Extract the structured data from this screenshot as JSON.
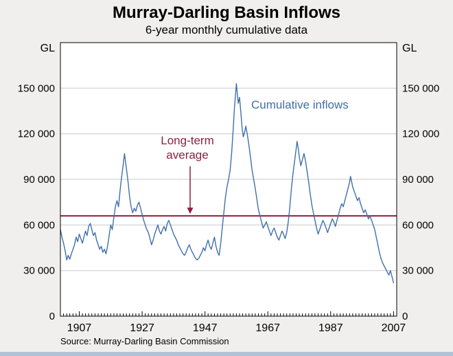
{
  "chart_data": {
    "type": "line",
    "title": "Murray-Darling Basin Inflows",
    "subtitle": "6-year monthly cumulative data",
    "unit": "GL",
    "source": "Source: Murray-Darling Basin Commission",
    "ylim": [
      0,
      180000
    ],
    "yticks": [
      0,
      30000,
      60000,
      90000,
      120000,
      150000
    ],
    "ytick_labels": [
      "0",
      "30 000",
      "60 000",
      "90 000",
      "120 000",
      "150 000"
    ],
    "xlim": [
      1901,
      2008
    ],
    "xticks": [
      1907,
      1927,
      1947,
      1967,
      1987,
      2007
    ],
    "minor_xtick_step": 1,
    "grid": true,
    "legend_position": "none",
    "colors": {
      "series": "#3f6fab",
      "average": "#8e1f3d",
      "grid": "#c9c9c9",
      "axis": "#000000",
      "plot_background": "#ffffff",
      "page_background": "#f0efee",
      "footer": "#b2c2d6"
    },
    "long_term_average": {
      "value": 66000,
      "label_line1": "Long-term",
      "label_line2": "average"
    },
    "series": [
      {
        "name": "Cumulative inflows",
        "color": "#3f6fab",
        "points": [
          [
            1901,
            57000
          ],
          [
            1901.5,
            52000
          ],
          [
            1902,
            48000
          ],
          [
            1902.5,
            43000
          ],
          [
            1903,
            37000
          ],
          [
            1903.5,
            40000
          ],
          [
            1904,
            37500
          ],
          [
            1904.5,
            41000
          ],
          [
            1905,
            44000
          ],
          [
            1905.5,
            47000
          ],
          [
            1906,
            52000
          ],
          [
            1906.5,
            49000
          ],
          [
            1907,
            54000
          ],
          [
            1907.5,
            51000
          ],
          [
            1908,
            48000
          ],
          [
            1908.5,
            52000
          ],
          [
            1909,
            56000
          ],
          [
            1909.5,
            53000
          ],
          [
            1910,
            59000
          ],
          [
            1910.5,
            61000
          ],
          [
            1911,
            57000
          ],
          [
            1911.5,
            53000
          ],
          [
            1912,
            55000
          ],
          [
            1912.5,
            50000
          ],
          [
            1913,
            47000
          ],
          [
            1913.5,
            44000
          ],
          [
            1914,
            46000
          ],
          [
            1914.5,
            42000
          ],
          [
            1915,
            44000
          ],
          [
            1915.5,
            41000
          ],
          [
            1916,
            46000
          ],
          [
            1916.5,
            53000
          ],
          [
            1917,
            60000
          ],
          [
            1917.5,
            57000
          ],
          [
            1918,
            65000
          ],
          [
            1918.5,
            72000
          ],
          [
            1919,
            76000
          ],
          [
            1919.5,
            72000
          ],
          [
            1920,
            83000
          ],
          [
            1920.5,
            92000
          ],
          [
            1921,
            100000
          ],
          [
            1921.4,
            107000
          ],
          [
            1921.8,
            100000
          ],
          [
            1922.2,
            94000
          ],
          [
            1922.6,
            87000
          ],
          [
            1923,
            79000
          ],
          [
            1923.5,
            72000
          ],
          [
            1924,
            68000
          ],
          [
            1924.5,
            71000
          ],
          [
            1925,
            69000
          ],
          [
            1925.5,
            73000
          ],
          [
            1926,
            75000
          ],
          [
            1926.5,
            71000
          ],
          [
            1927,
            67000
          ],
          [
            1927.5,
            63000
          ],
          [
            1928,
            60000
          ],
          [
            1928.5,
            57000
          ],
          [
            1929,
            55000
          ],
          [
            1929.5,
            51000
          ],
          [
            1930,
            47000
          ],
          [
            1930.5,
            50000
          ],
          [
            1931,
            54000
          ],
          [
            1931.5,
            57000
          ],
          [
            1932,
            60000
          ],
          [
            1932.5,
            56000
          ],
          [
            1933,
            54000
          ],
          [
            1933.5,
            57000
          ],
          [
            1934,
            59000
          ],
          [
            1934.5,
            56000
          ],
          [
            1935,
            61000
          ],
          [
            1935.5,
            63000
          ],
          [
            1936,
            60000
          ],
          [
            1936.5,
            57000
          ],
          [
            1937,
            54000
          ],
          [
            1937.5,
            52000
          ],
          [
            1938,
            50000
          ],
          [
            1938.5,
            47000
          ],
          [
            1939,
            45000
          ],
          [
            1939.5,
            43000
          ],
          [
            1940,
            41000
          ],
          [
            1940.5,
            40000
          ],
          [
            1941,
            42000
          ],
          [
            1941.5,
            45000
          ],
          [
            1942,
            47000
          ],
          [
            1942.5,
            44000
          ],
          [
            1943,
            42000
          ],
          [
            1943.5,
            40000
          ],
          [
            1944,
            38000
          ],
          [
            1944.5,
            37000
          ],
          [
            1945,
            38000
          ],
          [
            1945.5,
            40000
          ],
          [
            1946,
            42000
          ],
          [
            1946.5,
            45000
          ],
          [
            1947,
            43000
          ],
          [
            1947.5,
            47000
          ],
          [
            1948,
            50000
          ],
          [
            1948.5,
            46000
          ],
          [
            1949,
            44000
          ],
          [
            1949.5,
            48000
          ],
          [
            1950,
            52000
          ],
          [
            1950.5,
            46000
          ],
          [
            1951,
            42000
          ],
          [
            1951.5,
            40000
          ],
          [
            1952,
            48000
          ],
          [
            1952.5,
            58000
          ],
          [
            1953,
            68000
          ],
          [
            1953.5,
            78000
          ],
          [
            1954,
            85000
          ],
          [
            1954.5,
            90000
          ],
          [
            1955,
            96000
          ],
          [
            1955.5,
            108000
          ],
          [
            1956,
            124000
          ],
          [
            1956.4,
            138000
          ],
          [
            1956.8,
            148000
          ],
          [
            1957,
            153000
          ],
          [
            1957.3,
            146000
          ],
          [
            1957.6,
            140000
          ],
          [
            1958,
            144000
          ],
          [
            1958.4,
            134000
          ],
          [
            1958.8,
            124000
          ],
          [
            1959.2,
            118000
          ],
          [
            1959.6,
            121000
          ],
          [
            1960,
            125000
          ],
          [
            1960.5,
            119000
          ],
          [
            1961,
            112000
          ],
          [
            1961.5,
            104000
          ],
          [
            1962,
            96000
          ],
          [
            1962.5,
            90000
          ],
          [
            1963,
            84000
          ],
          [
            1963.5,
            77000
          ],
          [
            1964,
            70000
          ],
          [
            1964.5,
            66000
          ],
          [
            1965,
            62000
          ],
          [
            1965.5,
            58000
          ],
          [
            1966,
            60000
          ],
          [
            1966.5,
            62000
          ],
          [
            1967,
            59000
          ],
          [
            1967.5,
            56000
          ],
          [
            1968,
            53000
          ],
          [
            1968.5,
            56000
          ],
          [
            1969,
            58000
          ],
          [
            1969.5,
            55000
          ],
          [
            1970,
            52000
          ],
          [
            1970.5,
            50000
          ],
          [
            1971,
            53000
          ],
          [
            1971.5,
            56000
          ],
          [
            1972,
            54000
          ],
          [
            1972.5,
            51000
          ],
          [
            1973,
            55000
          ],
          [
            1973.5,
            62000
          ],
          [
            1974,
            72000
          ],
          [
            1974.5,
            84000
          ],
          [
            1975,
            94000
          ],
          [
            1975.5,
            102000
          ],
          [
            1976,
            110000
          ],
          [
            1976.3,
            115000
          ],
          [
            1976.7,
            110000
          ],
          [
            1977,
            105000
          ],
          [
            1977.5,
            99000
          ],
          [
            1978,
            103000
          ],
          [
            1978.5,
            107000
          ],
          [
            1979,
            102000
          ],
          [
            1979.5,
            95000
          ],
          [
            1980,
            88000
          ],
          [
            1980.5,
            80000
          ],
          [
            1981,
            73000
          ],
          [
            1981.5,
            68000
          ],
          [
            1982,
            63000
          ],
          [
            1982.5,
            58000
          ],
          [
            1983,
            54000
          ],
          [
            1983.5,
            57000
          ],
          [
            1984,
            60000
          ],
          [
            1984.5,
            63000
          ],
          [
            1985,
            61000
          ],
          [
            1985.5,
            58000
          ],
          [
            1986,
            55000
          ],
          [
            1986.5,
            58000
          ],
          [
            1987,
            61000
          ],
          [
            1987.5,
            64000
          ],
          [
            1988,
            62000
          ],
          [
            1988.5,
            59000
          ],
          [
            1989,
            63000
          ],
          [
            1989.5,
            67000
          ],
          [
            1990,
            71000
          ],
          [
            1990.5,
            74000
          ],
          [
            1991,
            72000
          ],
          [
            1991.5,
            76000
          ],
          [
            1992,
            80000
          ],
          [
            1992.5,
            84000
          ],
          [
            1993,
            88000
          ],
          [
            1993.3,
            92000
          ],
          [
            1993.7,
            88000
          ],
          [
            1994,
            85000
          ],
          [
            1994.5,
            82000
          ],
          [
            1995,
            79000
          ],
          [
            1995.5,
            76000
          ],
          [
            1996,
            78000
          ],
          [
            1996.5,
            74000
          ],
          [
            1997,
            71000
          ],
          [
            1997.5,
            68000
          ],
          [
            1998,
            70000
          ],
          [
            1998.5,
            67000
          ],
          [
            1999,
            64000
          ],
          [
            1999.5,
            66000
          ],
          [
            2000,
            63000
          ],
          [
            2000.5,
            60000
          ],
          [
            2001,
            57000
          ],
          [
            2001.5,
            52000
          ],
          [
            2002,
            47000
          ],
          [
            2002.5,
            42000
          ],
          [
            2003,
            38000
          ],
          [
            2003.5,
            35000
          ],
          [
            2004,
            33000
          ],
          [
            2004.5,
            31000
          ],
          [
            2005,
            29000
          ],
          [
            2005.5,
            27000
          ],
          [
            2006,
            30000
          ],
          [
            2006.5,
            26000
          ],
          [
            2007,
            22000
          ]
        ]
      }
    ]
  }
}
